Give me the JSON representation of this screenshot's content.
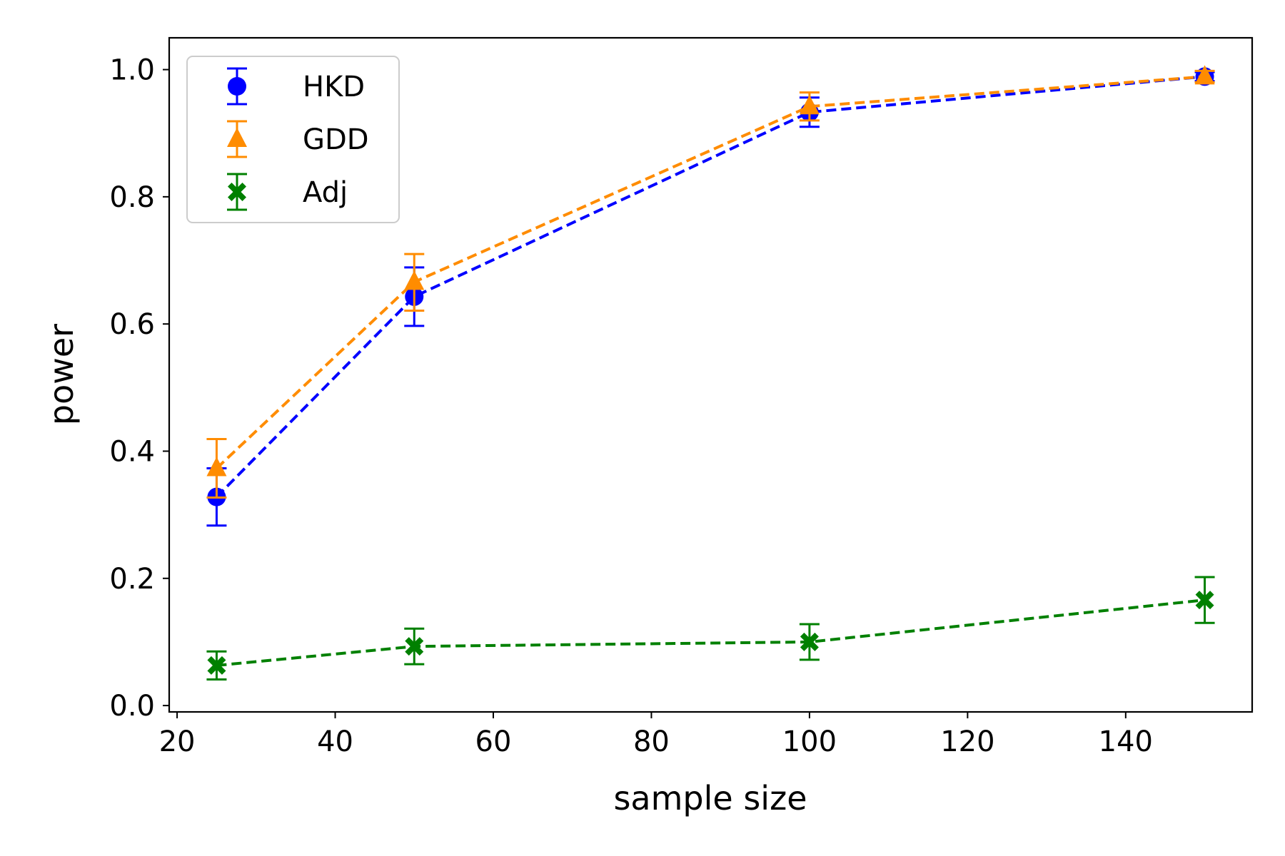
{
  "chart_data": {
    "type": "line",
    "xlabel": "sample size",
    "ylabel": "power",
    "xlim": [
      19,
      156
    ],
    "ylim": [
      -0.01,
      1.05
    ],
    "xticks": [
      20,
      40,
      60,
      80,
      100,
      120,
      140
    ],
    "yticks": [
      0.0,
      0.2,
      0.4,
      0.6,
      0.8,
      1.0
    ],
    "xtick_labels": [
      "20",
      "40",
      "60",
      "80",
      "100",
      "120",
      "140"
    ],
    "ytick_labels": [
      "0.0",
      "0.2",
      "0.4",
      "0.6",
      "0.8",
      "1.0"
    ],
    "grid": false,
    "legend_position": "top-left",
    "x": [
      25,
      50,
      100,
      150
    ],
    "series": [
      {
        "name": "HKD",
        "color": "#0000ff",
        "marker": "circle",
        "line_style": "dashed",
        "values": [
          0.328,
          0.643,
          0.933,
          0.989
        ],
        "err_low": [
          0.283,
          0.597,
          0.91,
          0.982
        ],
        "err_high": [
          0.373,
          0.689,
          0.956,
          0.996
        ]
      },
      {
        "name": "GDD",
        "color": "#ff8c00",
        "marker": "triangle",
        "line_style": "dashed",
        "values": [
          0.373,
          0.666,
          0.942,
          0.989
        ],
        "err_low": [
          0.327,
          0.621,
          0.92,
          0.98
        ],
        "err_high": [
          0.419,
          0.71,
          0.964,
          0.998
        ]
      },
      {
        "name": "Adj",
        "color": "#008000",
        "marker": "x-filled",
        "line_style": "dashed",
        "values": [
          0.063,
          0.093,
          0.1,
          0.166
        ],
        "err_low": [
          0.041,
          0.065,
          0.072,
          0.13
        ],
        "err_high": [
          0.085,
          0.121,
          0.128,
          0.202
        ]
      }
    ]
  }
}
